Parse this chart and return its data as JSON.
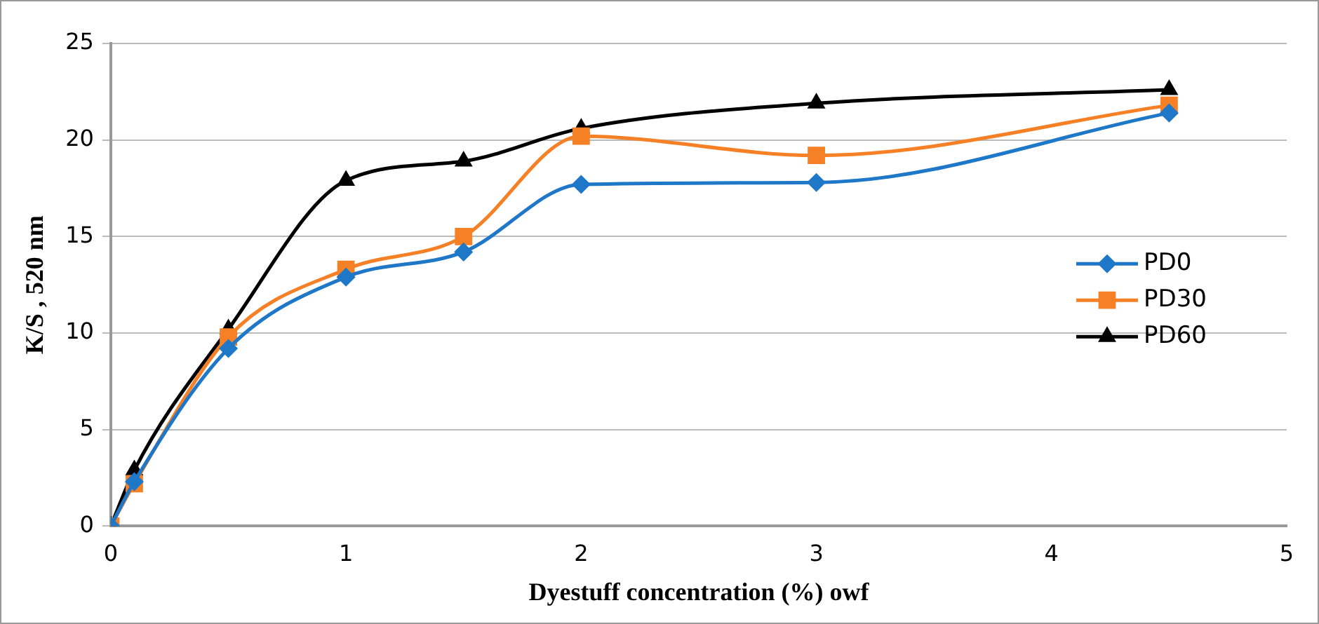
{
  "chart_data": {
    "type": "line",
    "xlabel": "Dyestuff concentration (%) owf",
    "ylabel": "K/S , 520 nm",
    "x": [
      0,
      0.1,
      0.5,
      1,
      1.5,
      2,
      3,
      4.5
    ],
    "series": [
      {
        "name": "PD0",
        "color": "#1f77c8",
        "marker": "diamond",
        "values": [
          0,
          2.3,
          9.2,
          12.9,
          14.2,
          17.7,
          17.8,
          21.4
        ]
      },
      {
        "name": "PD30",
        "color": "#f58025",
        "marker": "square",
        "values": [
          0,
          2.2,
          9.8,
          13.3,
          15.0,
          20.2,
          19.2,
          21.8
        ]
      },
      {
        "name": "PD60",
        "color": "#000000",
        "marker": "triangle",
        "values": [
          0,
          2.9,
          10.2,
          17.9,
          18.9,
          20.6,
          21.9,
          22.6
        ]
      }
    ],
    "xlim": [
      0,
      5
    ],
    "xticks": [
      0,
      1,
      2,
      3,
      4,
      5
    ],
    "ylim": [
      0,
      25
    ],
    "yticks": [
      0,
      5,
      10,
      15,
      20,
      25
    ],
    "grid": "y",
    "legend": "right"
  }
}
